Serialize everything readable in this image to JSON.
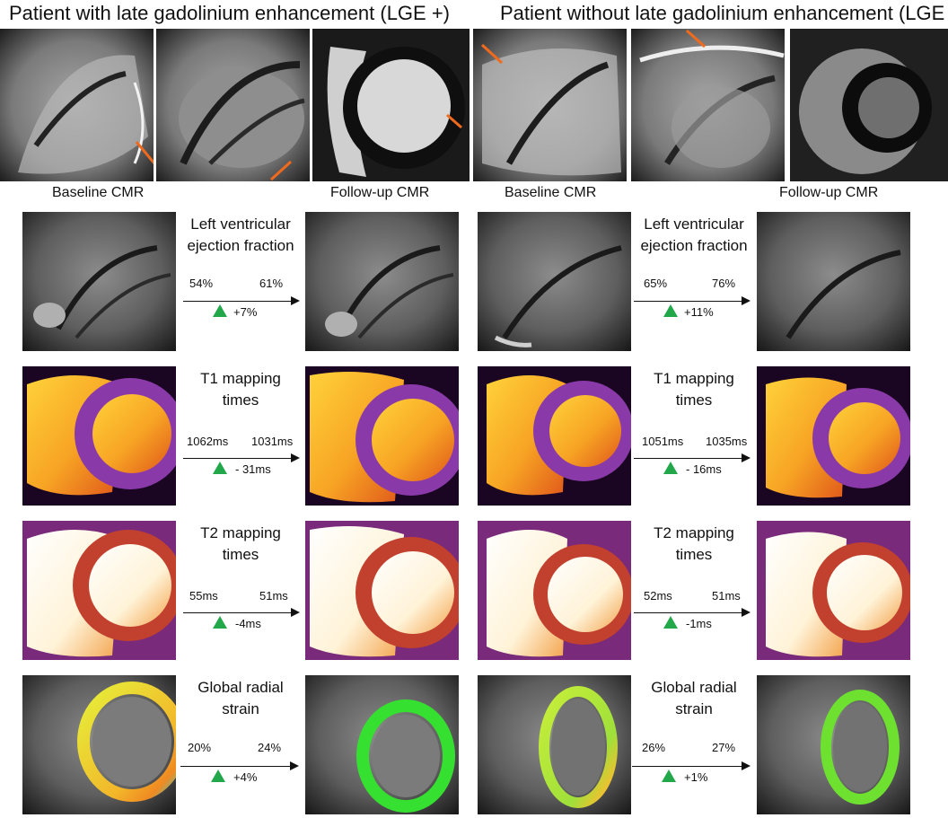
{
  "titles": {
    "left": "Patient with late gadolinium enhancement (LGE +)",
    "right": "Patient without late gadolinium enhancement (LGE -)"
  },
  "captions": {
    "left_baseline": "Baseline CMR",
    "left_followup": "Follow-up CMR",
    "right_baseline": "Baseline CMR",
    "right_followup": "Follow-up CMR"
  },
  "rows": [
    {
      "label_l1": "Left ventricular",
      "label_l2": "ejection fraction",
      "left": {
        "before": "54%",
        "after": "61%",
        "delta": "+7%"
      },
      "right": {
        "before": "65%",
        "after": "76%",
        "delta": "+11%"
      }
    },
    {
      "label_l1": "T1 mapping",
      "label_l2": "times",
      "left": {
        "before": "1062ms",
        "after": "1031ms",
        "delta": "- 31ms"
      },
      "right": {
        "before": "1051ms",
        "after": "1035ms",
        "delta": "- 16ms"
      }
    },
    {
      "label_l1": "T2 mapping",
      "label_l2": "times",
      "left": {
        "before": "55ms",
        "after": "51ms",
        "delta": "-4ms"
      },
      "right": {
        "before": "52ms",
        "after": "51ms",
        "delta": "-1ms"
      }
    },
    {
      "label_l1": "Global radial",
      "label_l2": "strain",
      "left": {
        "before": "20%",
        "after": "24%",
        "delta": "+4%"
      },
      "right": {
        "before": "26%",
        "after": "27%",
        "delta": "+1%"
      }
    }
  ],
  "colors": {
    "arrow_annotation": "#f06a1e",
    "up_triangle": "#22a84a"
  }
}
